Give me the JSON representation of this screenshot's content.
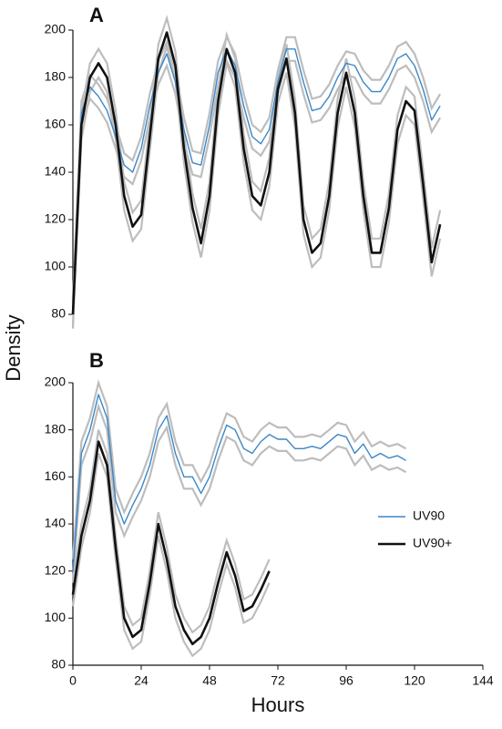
{
  "chart_data": [
    {
      "type": "line",
      "panel": "A",
      "ylabel": "Density",
      "xlim": [
        0,
        144
      ],
      "ylim": [
        80,
        200
      ],
      "yticks": [
        80,
        100,
        120,
        140,
        160,
        180,
        200
      ],
      "series": [
        {
          "name": "UV90",
          "color": "#3a87c8",
          "band": 5,
          "band_color": "#bdbdbd",
          "x": [
            0,
            3,
            6,
            9,
            12,
            15,
            18,
            21,
            24,
            27,
            30,
            33,
            36,
            39,
            42,
            45,
            48,
            51,
            54,
            57,
            60,
            63,
            66,
            69,
            72,
            75,
            78,
            81,
            84,
            87,
            90,
            93,
            96,
            99,
            102,
            105,
            108,
            111,
            114,
            117,
            120,
            123,
            126,
            129
          ],
          "values": [
            80,
            165,
            176,
            172,
            166,
            155,
            143,
            140,
            150,
            168,
            182,
            190,
            178,
            158,
            144,
            143,
            160,
            182,
            192,
            185,
            168,
            155,
            152,
            158,
            178,
            192,
            192,
            178,
            166,
            167,
            172,
            180,
            186,
            185,
            178,
            174,
            174,
            180,
            188,
            190,
            185,
            175,
            162,
            168
          ]
        },
        {
          "name": "UV90+",
          "color": "#111111",
          "band": 6,
          "band_color": "#bdbdbd",
          "x": [
            0,
            3,
            6,
            9,
            12,
            15,
            18,
            21,
            24,
            27,
            30,
            33,
            36,
            39,
            42,
            45,
            48,
            51,
            54,
            57,
            60,
            63,
            66,
            69,
            72,
            75,
            78,
            81,
            84,
            87,
            90,
            93,
            96,
            99,
            102,
            105,
            108,
            111,
            114,
            117,
            120,
            123,
            126,
            129
          ],
          "values": [
            80,
            160,
            180,
            186,
            180,
            160,
            130,
            117,
            122,
            155,
            188,
            199,
            185,
            150,
            125,
            110,
            130,
            170,
            192,
            182,
            150,
            130,
            126,
            140,
            175,
            188,
            165,
            120,
            106,
            110,
            130,
            165,
            182,
            165,
            130,
            106,
            106,
            125,
            158,
            170,
            166,
            135,
            102,
            118
          ]
        }
      ]
    },
    {
      "type": "line",
      "panel": "B",
      "xlabel": "Hours",
      "legend": "right",
      "xlim": [
        0,
        144
      ],
      "xticks": [
        0,
        24,
        48,
        72,
        96,
        120,
        144
      ],
      "ylim": [
        80,
        200
      ],
      "yticks": [
        80,
        100,
        120,
        140,
        160,
        180,
        200
      ],
      "series": [
        {
          "name": "UV90",
          "color": "#3a87c8",
          "band": 5,
          "band_color": "#bdbdbd",
          "x": [
            0,
            3,
            6,
            9,
            12,
            15,
            18,
            21,
            24,
            27,
            30,
            33,
            36,
            39,
            42,
            45,
            48,
            51,
            54,
            57,
            60,
            63,
            66,
            69,
            72,
            75,
            78,
            81,
            84,
            87,
            90,
            93,
            96,
            99,
            102,
            105,
            108,
            111,
            114,
            117
          ],
          "values": [
            120,
            170,
            180,
            195,
            185,
            150,
            140,
            148,
            155,
            165,
            180,
            186,
            170,
            160,
            160,
            153,
            160,
            172,
            182,
            180,
            172,
            170,
            175,
            178,
            176,
            176,
            172,
            172,
            173,
            172,
            175,
            178,
            177,
            170,
            174,
            168,
            170,
            168,
            169,
            167
          ]
        },
        {
          "name": "UV90+",
          "color": "#111111",
          "band": 5,
          "band_color": "#bdbdbd",
          "x": [
            0,
            3,
            6,
            9,
            12,
            15,
            18,
            21,
            24,
            27,
            30,
            33,
            36,
            39,
            42,
            45,
            48,
            51,
            54,
            57,
            60,
            63,
            66,
            69
          ],
          "values": [
            110,
            135,
            150,
            175,
            165,
            130,
            100,
            92,
            95,
            115,
            140,
            125,
            105,
            95,
            89,
            92,
            100,
            115,
            128,
            118,
            103,
            105,
            112,
            120
          ]
        }
      ]
    }
  ]
}
